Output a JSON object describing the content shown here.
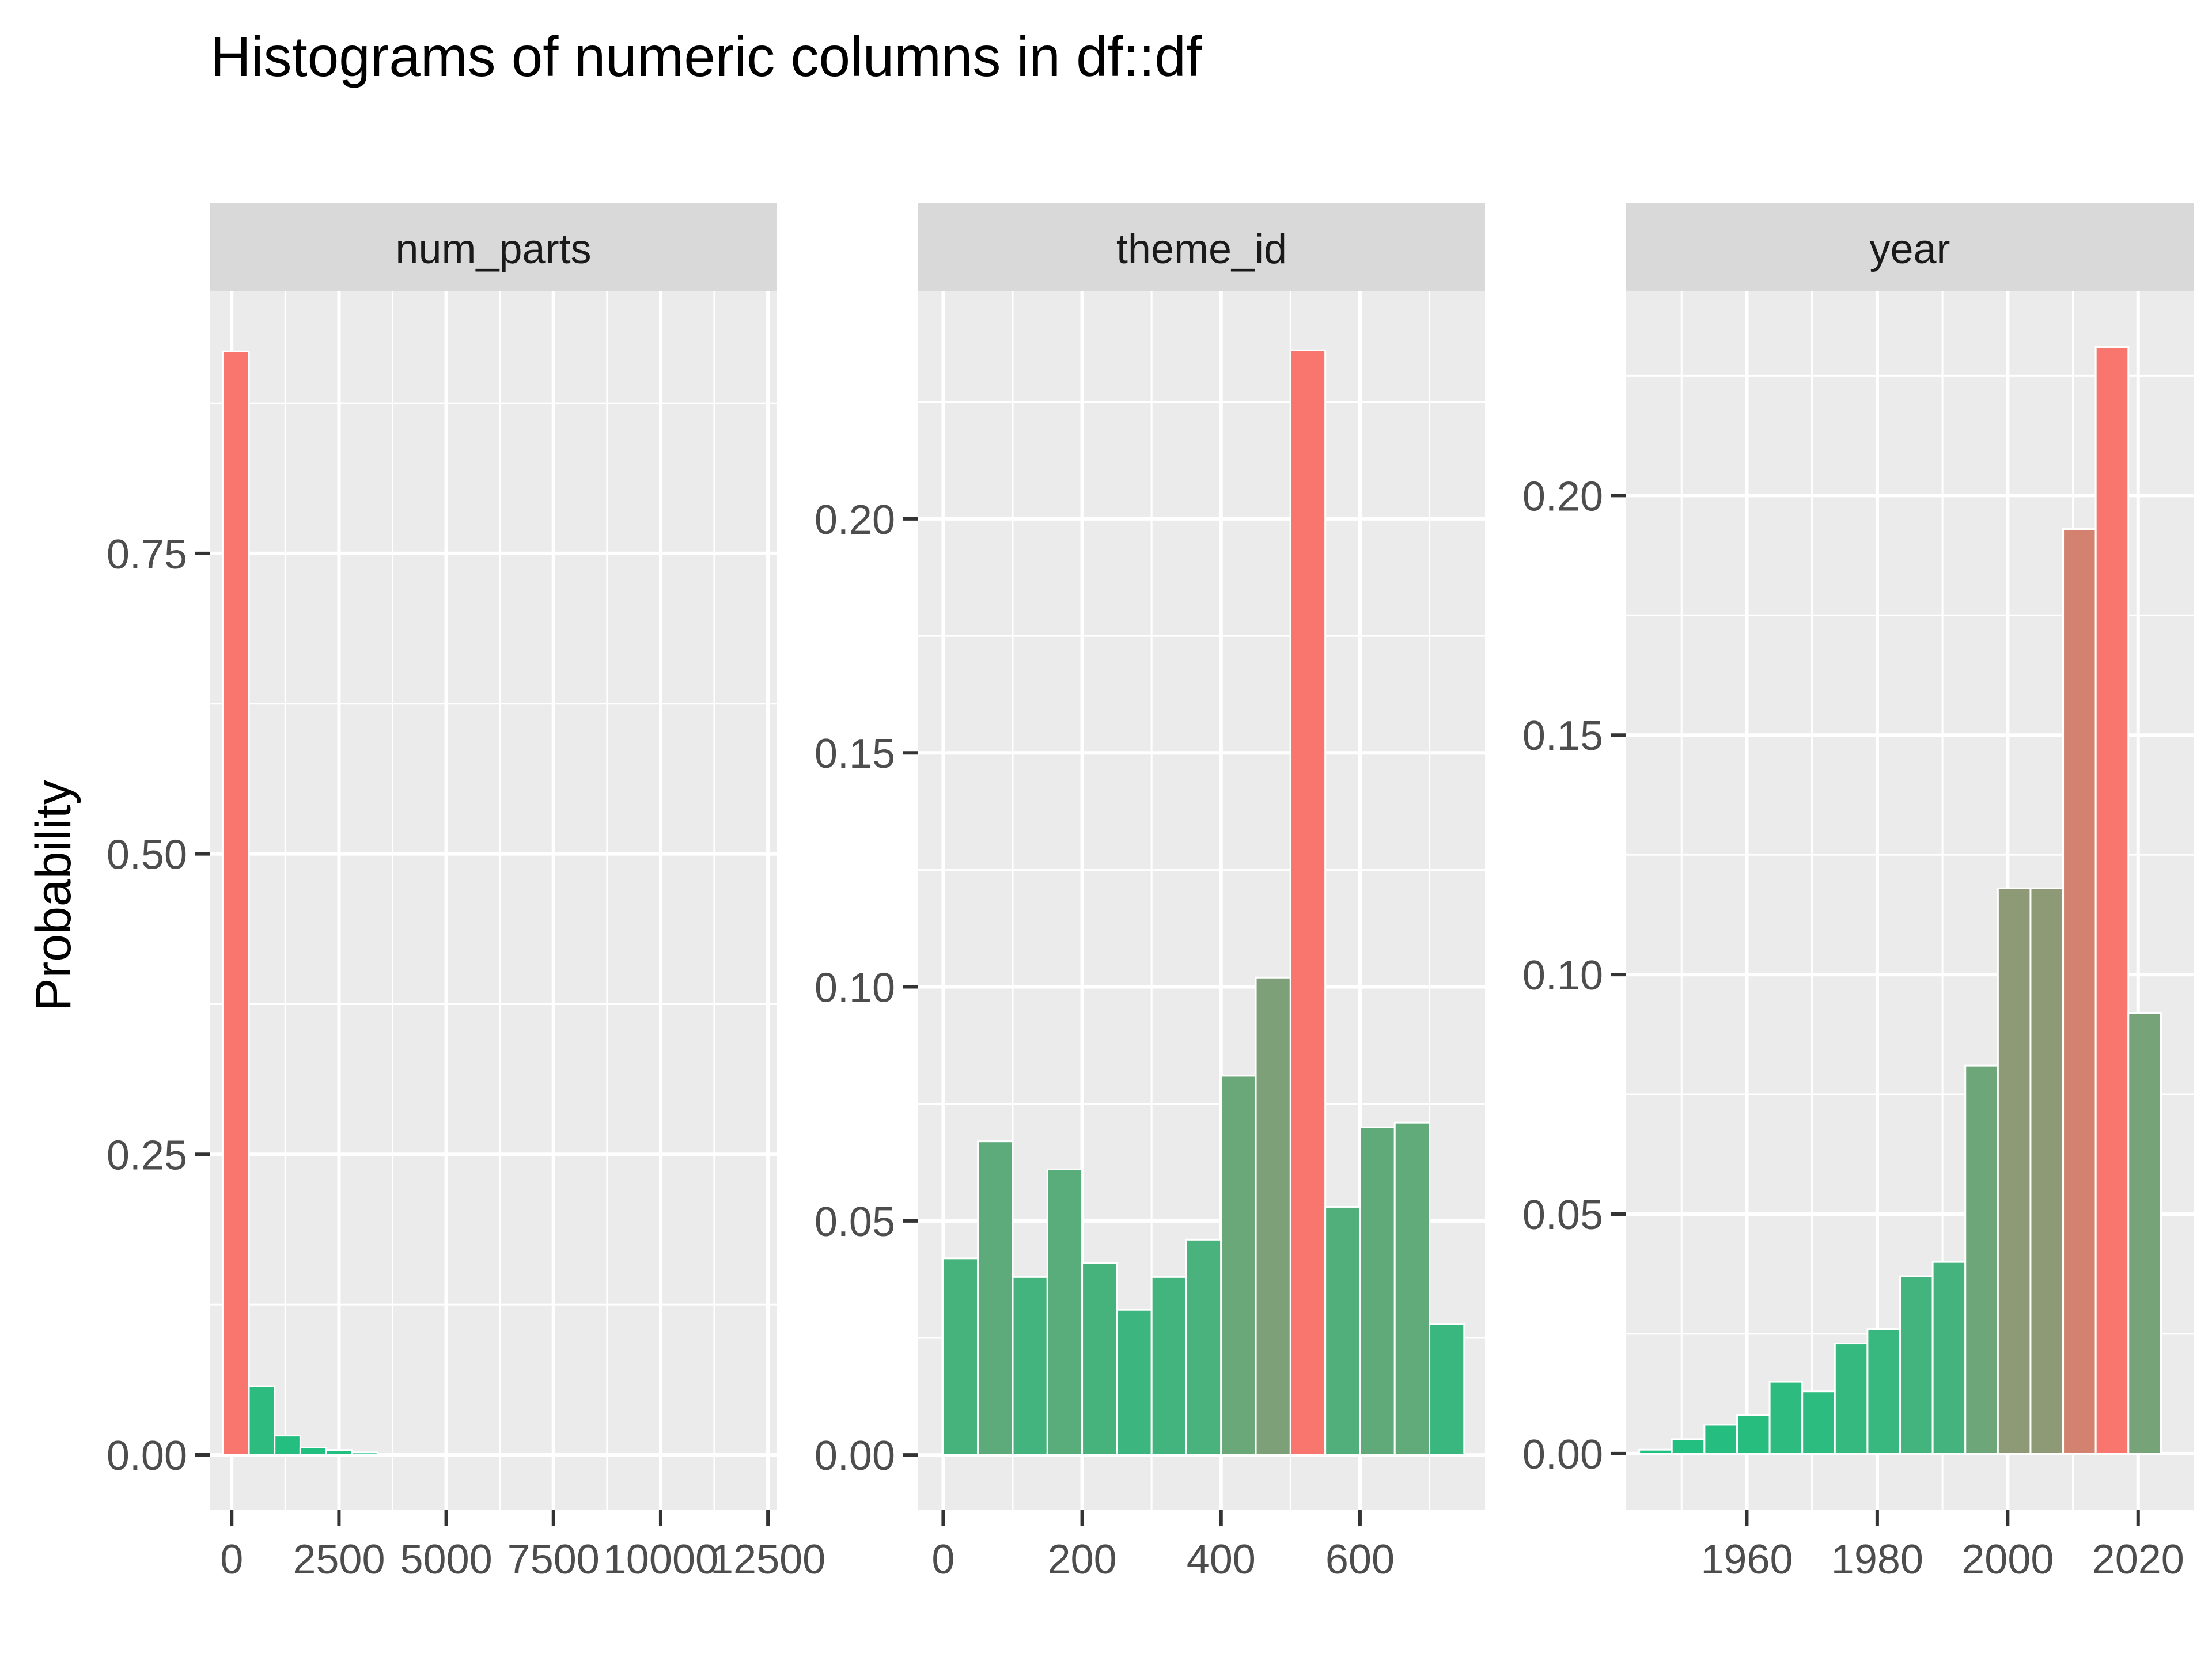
{
  "chart_data": {
    "type": "bar",
    "title": "Histograms of numeric columns in df::df",
    "ylabel": "Probability",
    "xlabel": "",
    "legend": "none",
    "grid": true,
    "color_scale": {
      "low": "#20c080",
      "high": "#f8766d"
    },
    "facets": [
      {
        "name": "num_parts",
        "xlim": [
          -500,
          12700
        ],
        "ylim": [
          -0.046,
          0.968
        ],
        "x_ticks": [
          0,
          2500,
          5000,
          7500,
          10000,
          12500
        ],
        "x_tick_labels": [
          "0",
          "2500",
          "5000",
          "7500",
          "10000",
          "12500"
        ],
        "y_ticks": [
          0,
          0.25,
          0.5,
          0.75
        ],
        "y_tick_labels": [
          "0.00",
          "0.25",
          "0.50",
          "0.75"
        ],
        "bin_width": 600,
        "bins": [
          {
            "x": 100,
            "value": 0.918
          },
          {
            "x": 700,
            "value": 0.057
          },
          {
            "x": 1300,
            "value": 0.016
          },
          {
            "x": 1900,
            "value": 0.006
          },
          {
            "x": 2500,
            "value": 0.004
          },
          {
            "x": 3100,
            "value": 0.002
          },
          {
            "x": 3700,
            "value": 0.001
          },
          {
            "x": 4300,
            "value": 0.001
          },
          {
            "x": 4900,
            "value": 0.0005
          },
          {
            "x": 5500,
            "value": 0.0002
          },
          {
            "x": 6100,
            "value": 0.0008
          },
          {
            "x": 6700,
            "value": 0.0001
          },
          {
            "x": 7300,
            "value": 0.0001
          },
          {
            "x": 7900,
            "value": 0
          },
          {
            "x": 8500,
            "value": 0
          },
          {
            "x": 9100,
            "value": 0
          },
          {
            "x": 9700,
            "value": 0
          },
          {
            "x": 10300,
            "value": 0
          },
          {
            "x": 10900,
            "value": 0
          },
          {
            "x": 11500,
            "value": 0.0001
          }
        ]
      },
      {
        "name": "theme_id",
        "xlim": [
          -36,
          780
        ],
        "ylim": [
          -0.0118,
          0.2486
        ],
        "x_ticks": [
          0,
          200,
          400,
          600
        ],
        "x_tick_labels": [
          "0",
          "200",
          "400",
          "600"
        ],
        "y_ticks": [
          0,
          0.05,
          0.1,
          0.15,
          0.2
        ],
        "y_tick_labels": [
          "0.00",
          "0.05",
          "0.10",
          "0.15",
          "0.20"
        ],
        "bin_width": 50,
        "bins": [
          {
            "x": 25,
            "value": 0.042
          },
          {
            "x": 75,
            "value": 0.067
          },
          {
            "x": 125,
            "value": 0.038
          },
          {
            "x": 175,
            "value": 0.061
          },
          {
            "x": 225,
            "value": 0.041
          },
          {
            "x": 275,
            "value": 0.031
          },
          {
            "x": 325,
            "value": 0.038
          },
          {
            "x": 375,
            "value": 0.046
          },
          {
            "x": 425,
            "value": 0.081
          },
          {
            "x": 475,
            "value": 0.102
          },
          {
            "x": 525,
            "value": 0.236
          },
          {
            "x": 575,
            "value": 0.053
          },
          {
            "x": 625,
            "value": 0.07
          },
          {
            "x": 675,
            "value": 0.071
          },
          {
            "x": 725,
            "value": 0.028
          }
        ]
      },
      {
        "name": "year",
        "xlim": [
          1941.5,
          2028.5
        ],
        "ylim": [
          -0.0118,
          0.2426
        ],
        "x_ticks": [
          1960,
          1980,
          2000,
          2020
        ],
        "x_tick_labels": [
          "1960",
          "1980",
          "2000",
          "2020"
        ],
        "y_ticks": [
          0,
          0.05,
          0.1,
          0.15,
          0.2
        ],
        "y_tick_labels": [
          "0.00",
          "0.05",
          "0.10",
          "0.15",
          "0.20"
        ],
        "bin_width": 5,
        "bins": [
          {
            "x": 1946,
            "value": 0.0008
          },
          {
            "x": 1951,
            "value": 0.003
          },
          {
            "x": 1956,
            "value": 0.006
          },
          {
            "x": 1961,
            "value": 0.008
          },
          {
            "x": 1966,
            "value": 0.015
          },
          {
            "x": 1971,
            "value": 0.013
          },
          {
            "x": 1976,
            "value": 0.023
          },
          {
            "x": 1981,
            "value": 0.026
          },
          {
            "x": 1986,
            "value": 0.037
          },
          {
            "x": 1991,
            "value": 0.04
          },
          {
            "x": 1996,
            "value": 0.081
          },
          {
            "x": 2001,
            "value": 0.118
          },
          {
            "x": 2006,
            "value": 0.118
          },
          {
            "x": 2011,
            "value": 0.193
          },
          {
            "x": 2016,
            "value": 0.231
          },
          {
            "x": 2021,
            "value": 0.092
          }
        ]
      }
    ]
  }
}
